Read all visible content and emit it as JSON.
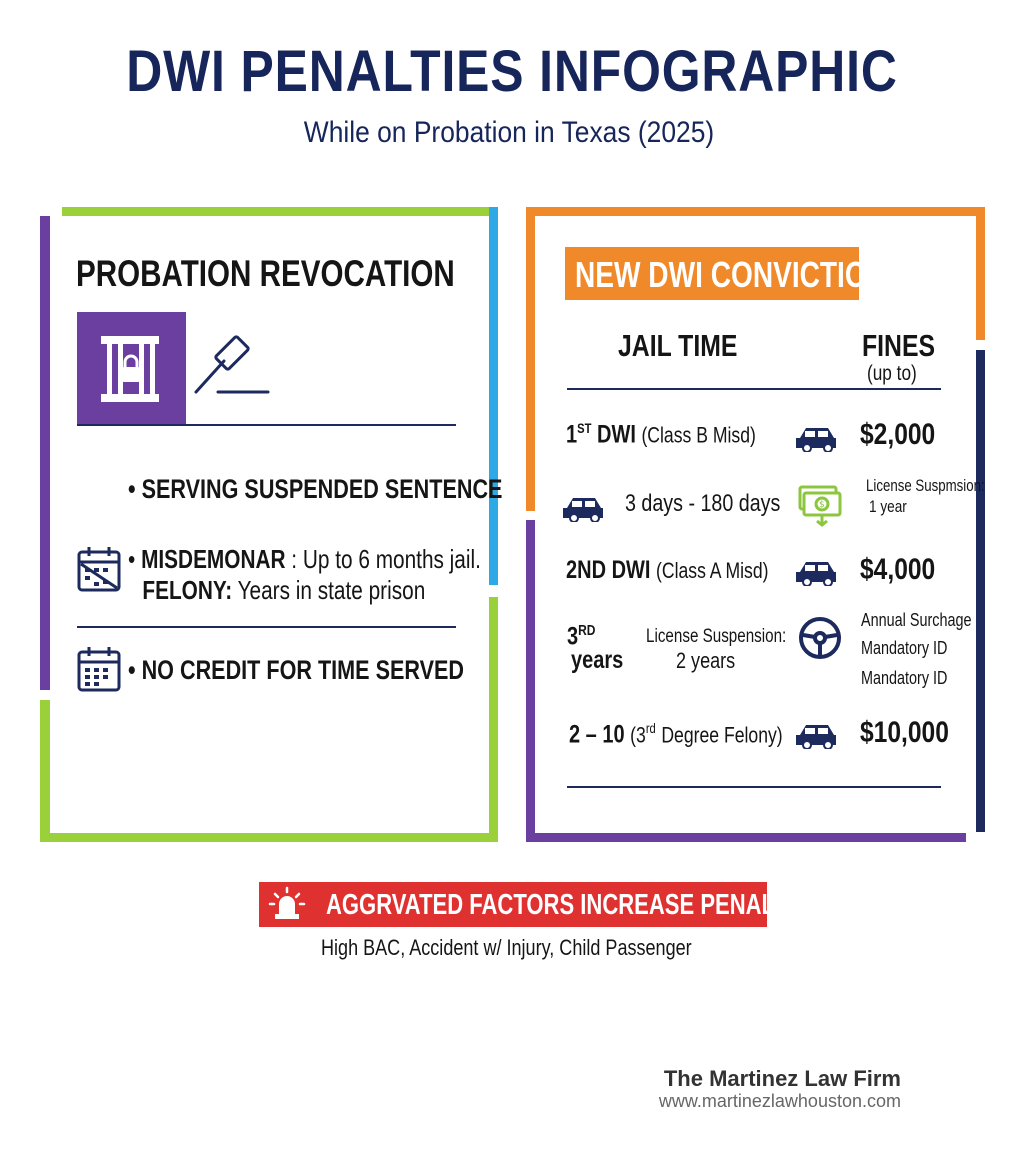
{
  "header": {
    "title": "DWI PENALTIES INFOGRAPHIC",
    "subtitle": "While on Probation in Texas (2025)"
  },
  "left_panel": {
    "heading": "PROBATION REVOCATION",
    "bullet1": "SERVING SUSPENDED SENTENCE",
    "bullet2_bold1": "MISDEMONAR",
    "bullet2_rest1": ": Up to 6 months jail.",
    "bullet2_bold2": "FELONY:",
    "bullet2_rest2": "Years in state prison",
    "bullet3": "NO CREDIT FOR TIME SERVED"
  },
  "right_panel": {
    "badge": "NEW DWI CONVICTION",
    "col_jail": "JAIL TIME",
    "col_fines": "FINES",
    "col_fines_sub": "(up to)",
    "row1_main": "1",
    "row1_sup": "ST",
    "row1_bold": "DWI",
    "row1_rest": "(Class B Misd)",
    "row1_fine": "$2,000",
    "row1b_jail": "3 days - 180 days",
    "row1b_note1": "License Suspmsion:",
    "row1b_note2": "1 year",
    "row2_bold": "2ND DWI",
    "row2_rest": "(Class A Misd)",
    "row2_fine": "$4,000",
    "row3_main": "3",
    "row3_sup": "RD",
    "row3_years": "years",
    "row3_lic1": "License Suspension:",
    "row3_lic2": "2 years",
    "row3_note1": "Annual Surchage",
    "row3_note2": "Mandatory ID",
    "row3_note3": "Mandatory ID",
    "row4_bold": "2 – 10",
    "row4_open": "(3",
    "row4_sup": "rd",
    "row4_rest": "Degree Felony)",
    "row4_fine": "$10,000"
  },
  "alert": {
    "label": "AGGRVATED FACTORS INCREASE PENALTIES",
    "factors": "High BAC, Accident w/ Injury, Child Passenger"
  },
  "footer": {
    "firm": "The Martinez Law Firm",
    "url": "www.martinezlawhouston.com"
  },
  "colors": {
    "navy": "#16255a",
    "purple": "#6b3fa0",
    "green": "#9ad13a",
    "blue": "#2ea9e6",
    "orange": "#f0892a",
    "red": "#e03131"
  }
}
